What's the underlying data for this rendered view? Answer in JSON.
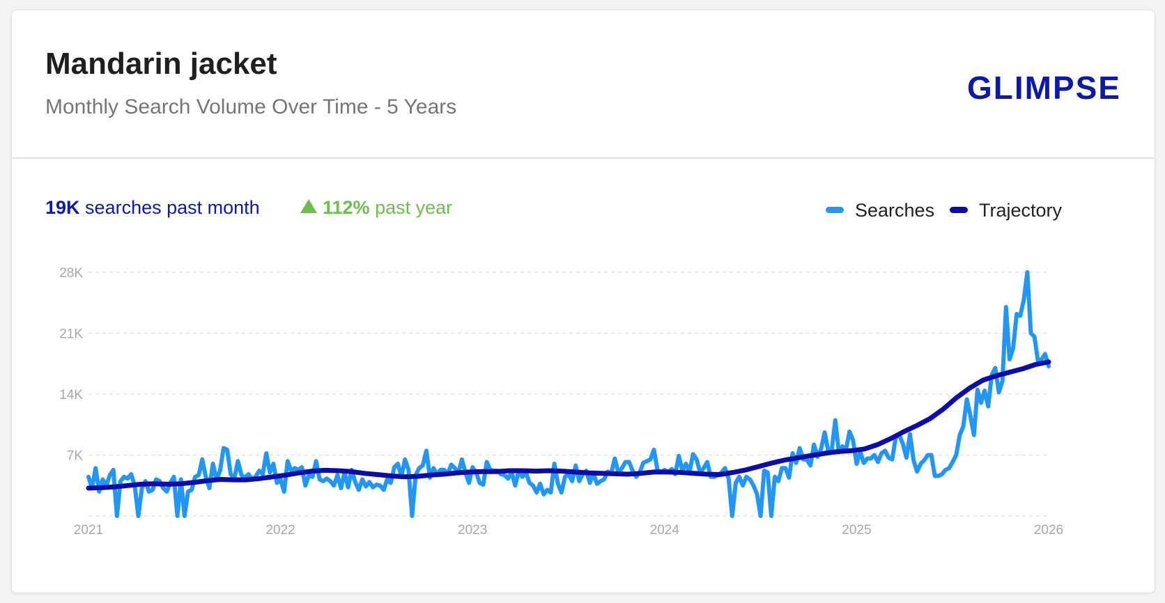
{
  "header": {
    "title": "Mandarin jacket",
    "subtitle": "Monthly Search Volume Over Time - 5 Years",
    "logo": "GLIMPSE"
  },
  "stats": {
    "month_value": "19K",
    "month_label": "searches past month",
    "year_value": "112%",
    "year_label": "past year"
  },
  "legend": {
    "searches": "Searches",
    "trajectory": "Trajectory"
  },
  "colors": {
    "searches": "#2196f3",
    "trajectory": "#0c0ca8",
    "growth": "#6cbf4a"
  },
  "chart_data": {
    "type": "line",
    "x_start": "2021-01",
    "x_end": "2026-01",
    "x_ticks": [
      "2021",
      "2022",
      "2023",
      "2024",
      "2025",
      "2026"
    ],
    "y_ticks": [
      "28K",
      "21K",
      "14K",
      "7K"
    ],
    "y_tick_values": [
      28000,
      21000,
      14000,
      7000
    ],
    "ylim": [
      0,
      28000
    ],
    "grid": true,
    "legend_position": "top-right",
    "series": [
      {
        "name": "Searches",
        "values": [
          4500,
          3200,
          5500,
          2800,
          4200,
          3500,
          4700,
          5300,
          0,
          4000,
          4500,
          4300,
          4800,
          3500,
          0,
          3200,
          4000,
          2800,
          3000,
          4200,
          4000,
          3200,
          2800,
          3800,
          4500,
          0,
          4200,
          0,
          2800,
          3000,
          4500,
          4700,
          6500,
          4500,
          3200,
          6000,
          4200,
          5200,
          7800,
          7600,
          4800,
          4300,
          6300,
          4700,
          4400,
          4800,
          4200,
          4500,
          5200,
          4800,
          7200,
          5000,
          6000,
          3800,
          4200,
          2800,
          6300,
          5200,
          5500,
          5300,
          5600,
          3500,
          4700,
          4500,
          6300,
          4200,
          4000,
          4300,
          4000,
          3500,
          4700,
          3200,
          5000,
          3300,
          5300,
          3900,
          3000,
          4200,
          3400,
          3900,
          3300,
          3600,
          3500,
          3000,
          4200,
          3800,
          5600,
          6000,
          4500,
          6500,
          5300,
          0,
          4700,
          5500,
          5800,
          7500,
          4400,
          5500,
          4800,
          5300,
          5300,
          4800,
          5900,
          5500,
          4900,
          6500,
          5000,
          3800,
          5600,
          5000,
          3800,
          3600,
          6200,
          5300,
          5200,
          5200,
          4800,
          4700,
          4300,
          5000,
          3500,
          5200,
          4500,
          5000,
          3800,
          3500,
          2700,
          3700,
          2500,
          3000,
          2700,
          6000,
          3700,
          2700,
          4500,
          4800,
          4000,
          5800,
          4000,
          4800,
          5200,
          3800,
          4900,
          3700,
          4000,
          4200,
          5100,
          4900,
          6600,
          5000,
          5500,
          6200,
          6200,
          5200,
          4500,
          5000,
          6100,
          6300,
          6500,
          7600,
          5300,
          5000,
          5300,
          5000,
          5400,
          4800,
          6900,
          5200,
          6000,
          5000,
          7100,
          6500,
          5000,
          5500,
          6200,
          4500,
          4500,
          4700,
          5000,
          5500,
          4300,
          0,
          3800,
          4500,
          3500,
          4500,
          4200,
          3500,
          2500,
          0,
          5200,
          5000,
          0,
          4500,
          4000,
          5500,
          5500,
          4400,
          7200,
          6100,
          7800,
          6500,
          6500,
          5800,
          8200,
          6800,
          7700,
          9600,
          7500,
          7600,
          11000,
          7300,
          8000,
          7600,
          9700,
          8700,
          6000,
          7400,
          6100,
          6600,
          6600,
          7000,
          6200,
          7200,
          7500,
          6700,
          6500,
          9000,
          9300,
          8300,
          6700,
          9400,
          6400,
          5100,
          6000,
          6400,
          7000,
          7000,
          4600,
          4600,
          4800,
          5300,
          5500,
          6200,
          7000,
          9300,
          10300,
          13400,
          11500,
          9300,
          14500,
          13000,
          14400,
          12600,
          16200,
          17000,
          14200,
          15500,
          24000,
          18000,
          19300,
          23200,
          23000,
          24800,
          28000,
          21000,
          20600,
          17800,
          18000,
          18600,
          17200
        ]
      },
      {
        "name": "Trajectory",
        "values": [
          3200,
          3250,
          3350,
          3500,
          3650,
          3700,
          3650,
          3700,
          3850,
          4050,
          4200,
          4150,
          4150,
          4300,
          4500,
          4700,
          4950,
          5150,
          5250,
          5200,
          5100,
          4900,
          4750,
          4600,
          4500,
          4550,
          4700,
          4800,
          4950,
          5050,
          5100,
          5100,
          5200,
          5200,
          5150,
          5200,
          5150,
          5050,
          4950,
          4900,
          4850,
          4800,
          4900,
          5050,
          5050,
          5000,
          4900,
          4800,
          4750,
          5000,
          5300,
          5700,
          6100,
          6450,
          6700,
          6950,
          7200,
          7400,
          7500,
          7700,
          8200,
          8900,
          9700,
          10400,
          11200,
          12300,
          13600,
          14700,
          15600,
          16100,
          16500,
          16900,
          17400,
          17700
        ]
      }
    ]
  }
}
